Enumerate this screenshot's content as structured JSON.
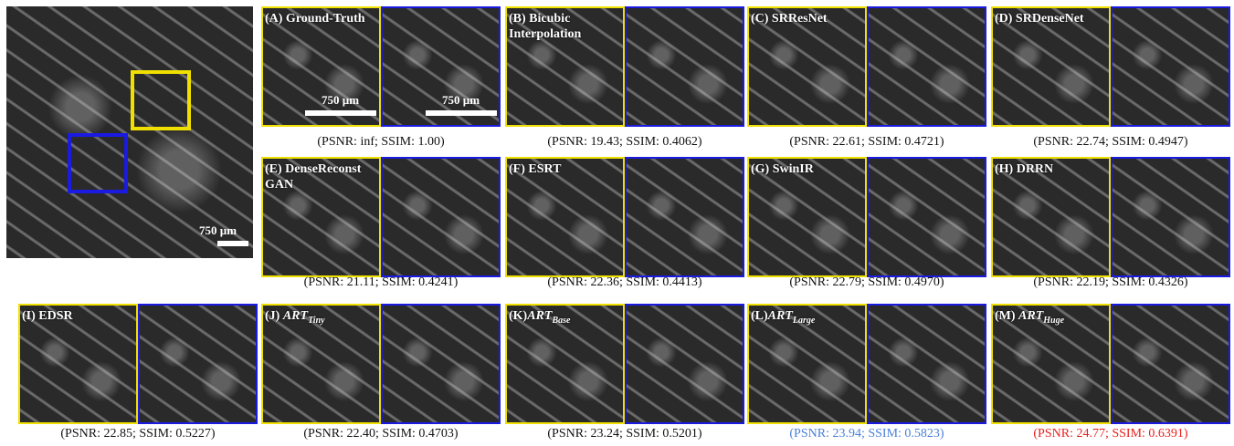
{
  "overview": {
    "scale_bar": "750 µm"
  },
  "panels": [
    {
      "label": "(A) Ground-Truth",
      "caption": "(PSNR: inf; SSIM: 1.00)",
      "scale_bars": [
        "750 µm",
        "750 µm"
      ]
    },
    {
      "label": "(B) Bicubic Interpolation",
      "caption": "(PSNR: 19.43; SSIM: 0.4062)"
    },
    {
      "label": "(C) SRResNet",
      "caption": "(PSNR: 22.61; SSIM: 0.4721)"
    },
    {
      "label": "(D) SRDenseNet",
      "caption": "(PSNR: 22.74; SSIM: 0.4947)"
    },
    {
      "label": "(E) DenseReconst GAN",
      "caption": "(PSNR: 21.11; SSIM: 0.4241)"
    },
    {
      "label": "(F) ESRT",
      "caption": "(PSNR: 22.36; SSIM: 0.4413)"
    },
    {
      "label": "(G) SwinIR",
      "caption": "(PSNR: 22.79; SSIM: 0.4970)"
    },
    {
      "label": "(H) DRRN",
      "caption": "(PSNR: 22.19; SSIM: 0.4326)"
    },
    {
      "label": "(I) EDSR",
      "caption": "(PSNR: 22.85; SSIM: 0.5227)"
    },
    {
      "label": "(J) ",
      "label_main": "ART",
      "label_sub": "Tiny",
      "caption": "(PSNR: 22.40; SSIM: 0.4703)"
    },
    {
      "label": "(K)",
      "label_main": "ART",
      "label_sub": "Base",
      "caption": "(PSNR: 23.24; SSIM: 0.5201)"
    },
    {
      "label": "(L)",
      "label_main": "ART",
      "label_sub": "Large",
      "caption": "(PSNR: 23.94; SSIM: 0.5823)",
      "caption_color": "#4a7fd8"
    },
    {
      "label": "(M) ",
      "label_main": "ART",
      "label_sub": "Huge",
      "caption": "(PSNR: 24.77; SSIM: 0.6391)",
      "caption_color": "#e8201c"
    }
  ]
}
